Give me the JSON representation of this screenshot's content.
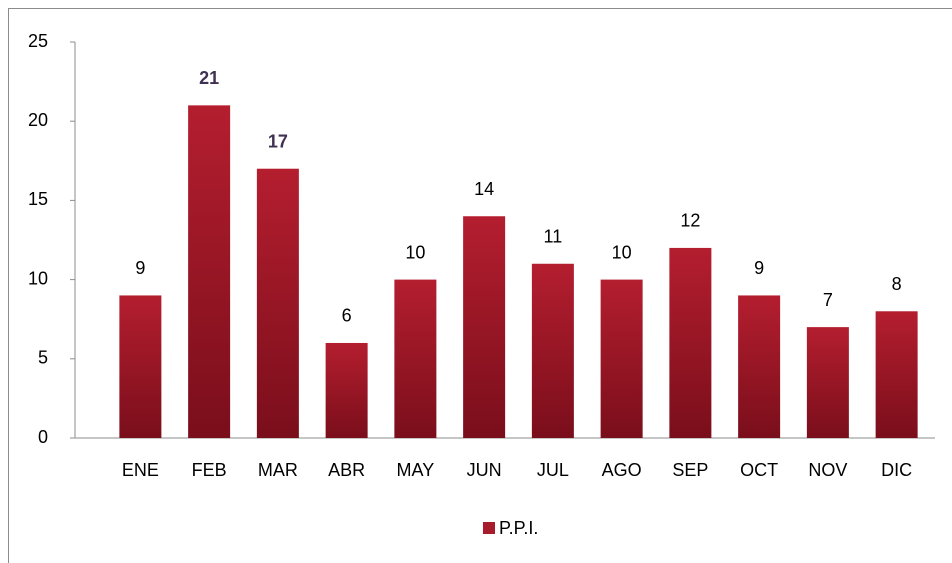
{
  "chart_data": {
    "type": "bar",
    "categories": [
      "ENE",
      "FEB",
      "MAR",
      "ABR",
      "MAY",
      "JUN",
      "JUL",
      "AGO",
      "SEP",
      "OCT",
      "NOV",
      "DIC"
    ],
    "series": [
      {
        "name": "P.P.I.",
        "color": "#a81b2b",
        "values": [
          9,
          21,
          17,
          6,
          10,
          14,
          11,
          10,
          12,
          9,
          7,
          8
        ]
      }
    ],
    "ylim": [
      0,
      25
    ],
    "yticks": [
      0,
      5,
      10,
      15,
      20,
      25
    ],
    "grid": false,
    "legend": "bottom",
    "label_color": "#000000",
    "highlight_label_color": "#403152",
    "highlight": [
      false,
      true,
      true,
      false,
      false,
      false,
      false,
      false,
      false,
      false,
      false,
      false
    ]
  }
}
